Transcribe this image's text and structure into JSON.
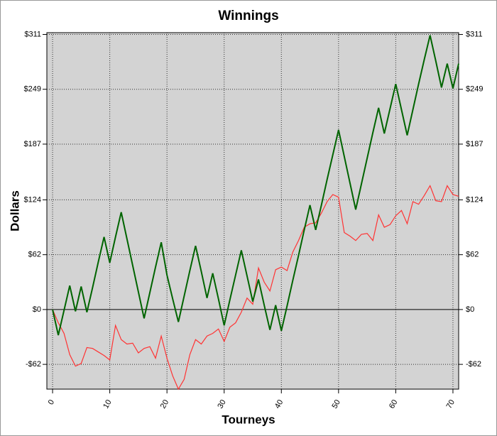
{
  "chart_data": {
    "type": "line",
    "title": "Winnings",
    "x_label": "Tourneys",
    "y_label": "Dollars",
    "x": [
      0,
      1,
      2,
      3,
      4,
      5,
      6,
      7,
      8,
      9,
      10,
      11,
      12,
      13,
      14,
      15,
      16,
      17,
      18,
      19,
      20,
      21,
      22,
      23,
      24,
      25,
      26,
      27,
      28,
      29,
      30,
      31,
      32,
      33,
      34,
      35,
      36,
      37,
      38,
      39,
      40,
      41,
      42,
      43,
      44,
      45,
      46,
      47,
      48,
      49,
      50,
      51,
      52,
      53,
      54,
      55,
      56,
      57,
      58,
      59,
      60,
      61,
      62,
      63,
      64,
      65,
      66,
      67,
      68,
      69,
      70,
      71
    ],
    "series": [
      {
        "color": "#006400",
        "values": [
          0,
          -29,
          -1,
          27,
          -2,
          26,
          -3,
          25,
          54,
          82,
          53,
          82,
          110,
          80,
          50,
          20,
          -10,
          19,
          48,
          76,
          39,
          12,
          -14,
          15,
          44,
          72,
          43,
          13,
          41,
          12,
          -18,
          11,
          39,
          67,
          38,
          9,
          34,
          5,
          -23,
          5,
          -24,
          4,
          33,
          61,
          90,
          118,
          90,
          118,
          147,
          175,
          203,
          173,
          143,
          113,
          142,
          171,
          200,
          228,
          199,
          227,
          255,
          226,
          197,
          226,
          255,
          283,
          310,
          281,
          251,
          278,
          250,
          278
        ]
      },
      {
        "color": "#ff3333",
        "values": [
          0,
          -15,
          -27,
          -51,
          -64,
          -61,
          -43,
          -44,
          -48,
          -52,
          -57,
          -18,
          -34,
          -39,
          -38,
          -49,
          -44,
          -42,
          -55,
          -30,
          -55,
          -75,
          -90,
          -79,
          -51,
          -34,
          -39,
          -30,
          -27,
          -22,
          -36,
          -20,
          -15,
          -3,
          13,
          6,
          47,
          31,
          21,
          45,
          48,
          44,
          65,
          78,
          93,
          97,
          98,
          109,
          122,
          130,
          127,
          87,
          83,
          78,
          85,
          86,
          78,
          107,
          93,
          96,
          106,
          112,
          97,
          122,
          119,
          129,
          140,
          123,
          122,
          140,
          130,
          128
        ]
      }
    ],
    "xlim": [
      -1,
      71
    ],
    "ylim": [
      -90,
      313
    ],
    "xticks": [
      0,
      10,
      20,
      30,
      40,
      50,
      60,
      70
    ],
    "yticks": [
      {
        "value": -62,
        "label": "-$62"
      },
      {
        "value": 0,
        "label": "$0"
      },
      {
        "value": 62,
        "label": "$62"
      },
      {
        "value": 124,
        "label": "$124"
      },
      {
        "value": 187,
        "label": "$187"
      },
      {
        "value": 249,
        "label": "$249"
      },
      {
        "value": 311,
        "label": "$311"
      }
    ],
    "grid": true,
    "background": "#d3d3d3"
  }
}
